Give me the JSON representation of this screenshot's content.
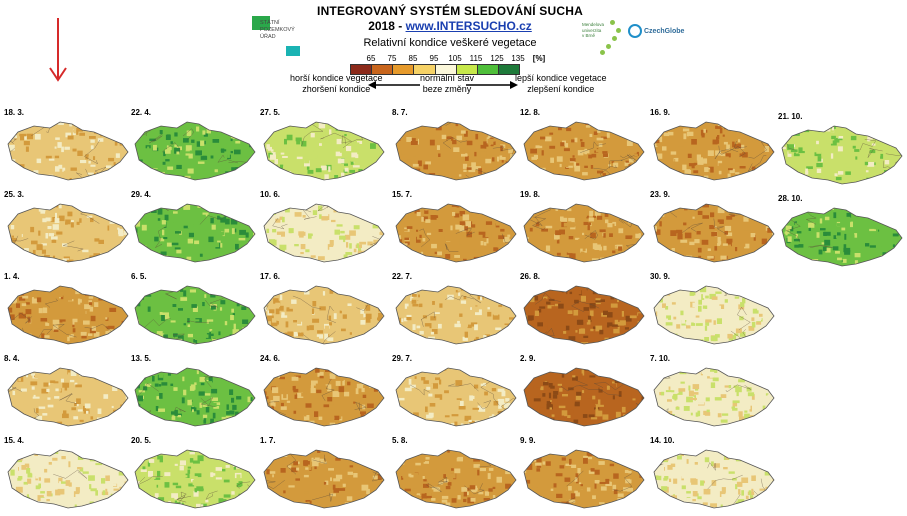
{
  "header": {
    "title": "INTEGROVANÝ SYSTÉM SLEDOVÁNÍ SUCHA",
    "year": "2018",
    "separator": " - ",
    "url": "www.INTERSUCHO.cz",
    "legend_title": "Relativní kondice veškeré vegetace"
  },
  "logos": {
    "spu_lines": [
      "STÁTNÍ",
      "POZEMKOVÝ",
      "ÚŘAD"
    ],
    "mendel_lines": [
      "Mendelova",
      "univerzita",
      "v Brně"
    ],
    "czechglobe": "CzechGlobe"
  },
  "legend": {
    "ticks": [
      "65",
      "75",
      "85",
      "95",
      "105",
      "115",
      "125",
      "135"
    ],
    "unit": "[%]",
    "colors": [
      "#8c2a1a",
      "#c8651c",
      "#e69a2b",
      "#f6d266",
      "#fbf7da",
      "#c7e84a",
      "#4fbf3a",
      "#1e7a3a"
    ],
    "left_line1": "horší kondice vegetace",
    "left_line2": "zhoršení kondice",
    "center_line1": "normální stav",
    "center_line2": "beze změny",
    "right_line1": "lepší kondice vegetace",
    "right_line2": "zlepšení kondice"
  },
  "maps": [
    {
      "date": "18. 3.",
      "level": 0.42
    },
    {
      "date": "25. 3.",
      "level": 0.4
    },
    {
      "date": "1. 4.",
      "level": 0.35
    },
    {
      "date": "8. 4.",
      "level": 0.45
    },
    {
      "date": "15. 4.",
      "level": 0.62
    },
    {
      "date": "22. 4.",
      "level": 0.9
    },
    {
      "date": "29. 4.",
      "level": 0.92
    },
    {
      "date": "6. 5.",
      "level": 0.88
    },
    {
      "date": "13. 5.",
      "level": 0.82
    },
    {
      "date": "20. 5.",
      "level": 0.78
    },
    {
      "date": "27. 5.",
      "level": 0.7
    },
    {
      "date": "10. 6.",
      "level": 0.5
    },
    {
      "date": "17. 6.",
      "level": 0.4
    },
    {
      "date": "24. 6.",
      "level": 0.32
    },
    {
      "date": "1. 7.",
      "level": 0.28
    },
    {
      "date": "8. 7.",
      "level": 0.3
    },
    {
      "date": "15. 7.",
      "level": 0.32
    },
    {
      "date": "22. 7.",
      "level": 0.36
    },
    {
      "date": "29. 7.",
      "level": 0.38
    },
    {
      "date": "5. 8.",
      "level": 0.33
    },
    {
      "date": "12. 8.",
      "level": 0.26
    },
    {
      "date": "19. 8.",
      "level": 0.22
    },
    {
      "date": "26. 8.",
      "level": 0.18
    },
    {
      "date": "2. 9.",
      "level": 0.2
    },
    {
      "date": "9. 9.",
      "level": 0.22
    },
    {
      "date": "16. 9.",
      "level": 0.24
    },
    {
      "date": "23. 9.",
      "level": 0.32
    },
    {
      "date": "30. 9.",
      "level": 0.52
    },
    {
      "date": "7. 10.",
      "level": 0.55
    },
    {
      "date": "14. 10.",
      "level": 0.55
    },
    {
      "date": "21. 10.",
      "level": 0.68
    },
    {
      "date": "28. 10.",
      "level": 0.8
    }
  ]
}
